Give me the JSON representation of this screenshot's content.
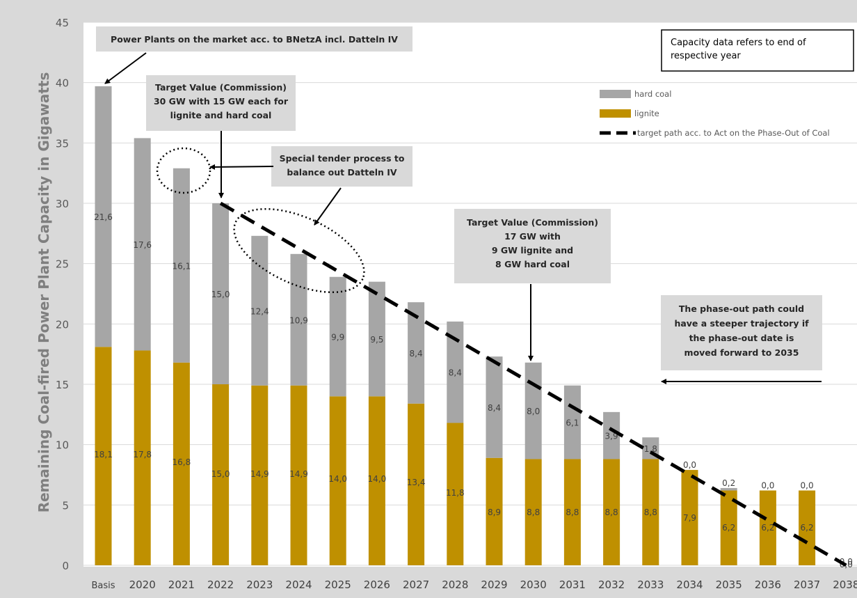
{
  "chart_data": {
    "type": "bar",
    "stacked": true,
    "categories": [
      "Basis",
      "2020",
      "2021",
      "2022",
      "2023",
      "2024",
      "2025",
      "2026",
      "2027",
      "2028",
      "2029",
      "2030",
      "2031",
      "2032",
      "2033",
      "2034",
      "2035",
      "2036",
      "2037",
      "2038"
    ],
    "series": [
      {
        "name": "hard coal",
        "color": "#a6a6a6",
        "values": [
          21.6,
          17.6,
          16.1,
          15.0,
          12.4,
          10.9,
          9.9,
          9.5,
          8.4,
          8.4,
          8.4,
          8.0,
          6.1,
          3.9,
          1.8,
          0.0,
          0.2,
          0.0,
          0.0,
          0.0
        ],
        "labels": [
          "21,6",
          "17,6",
          "16,1",
          "15,0",
          "12,4",
          "10,9",
          "9,9",
          "9,5",
          "8,4",
          "8,4",
          "8,4",
          "8,0",
          "6,1",
          "3,9",
          "1,8",
          "0,0",
          "0,2",
          "0,0",
          "0,0",
          "0,0"
        ]
      },
      {
        "name": "lignite",
        "color": "#bf9000",
        "values": [
          18.1,
          17.8,
          16.8,
          15.0,
          14.9,
          14.9,
          14.0,
          14.0,
          13.4,
          11.8,
          8.9,
          8.8,
          8.8,
          8.8,
          8.8,
          7.9,
          6.2,
          6.2,
          6.2,
          0.0
        ],
        "labels": [
          "18,1",
          "17,8",
          "16,8",
          "15,0",
          "14,9",
          "14,9",
          "14,0",
          "14,0",
          "13,4",
          "11,8",
          "8,9",
          "8,8",
          "8,8",
          "8,8",
          "8,8",
          "7,9",
          "6,2",
          "6,2",
          "6,2",
          "0,0"
        ]
      }
    ],
    "target_path": {
      "name": "target path acc. to Act on the Phase-Out of Coal",
      "x": [
        "2022",
        "2038"
      ],
      "y": [
        30,
        0
      ]
    },
    "ylabel": "Remaining Coal-fired Power Plant Capacity in Gigawatts",
    "ylim": [
      0,
      45
    ],
    "yticks": [
      0,
      5,
      10,
      15,
      20,
      25,
      30,
      35,
      40,
      45
    ],
    "grid": true,
    "legend_position": "top-right",
    "legend": [
      {
        "label": "hard coal",
        "color": "#a6a6a6",
        "kind": "box"
      },
      {
        "label": "lignite",
        "color": "#bf9000",
        "kind": "box"
      },
      {
        "label": "target path acc. to Act on the Phase-Out of Coal",
        "color": "#000000",
        "kind": "dash"
      }
    ],
    "annotations": {
      "market": [
        "Power Plants on the market acc. to BNetzA incl. Datteln IV"
      ],
      "target2022": [
        "Target Value (Commission)",
        "30 GW with 15 GW each for",
        "lignite and hard coal"
      ],
      "tender": [
        "Special tender process to",
        "balance out Datteln IV"
      ],
      "target2030": [
        "Target Value (Commission)",
        "17 GW with",
        "9 GW lignite and",
        "8 GW hard coal"
      ],
      "phaseout": [
        "The phase-out path could",
        "have a steeper trajectory if",
        "the phase-out date is",
        "moved forward to 2035"
      ],
      "note": [
        "Capacity data refers to end of",
        "respective year"
      ]
    }
  }
}
